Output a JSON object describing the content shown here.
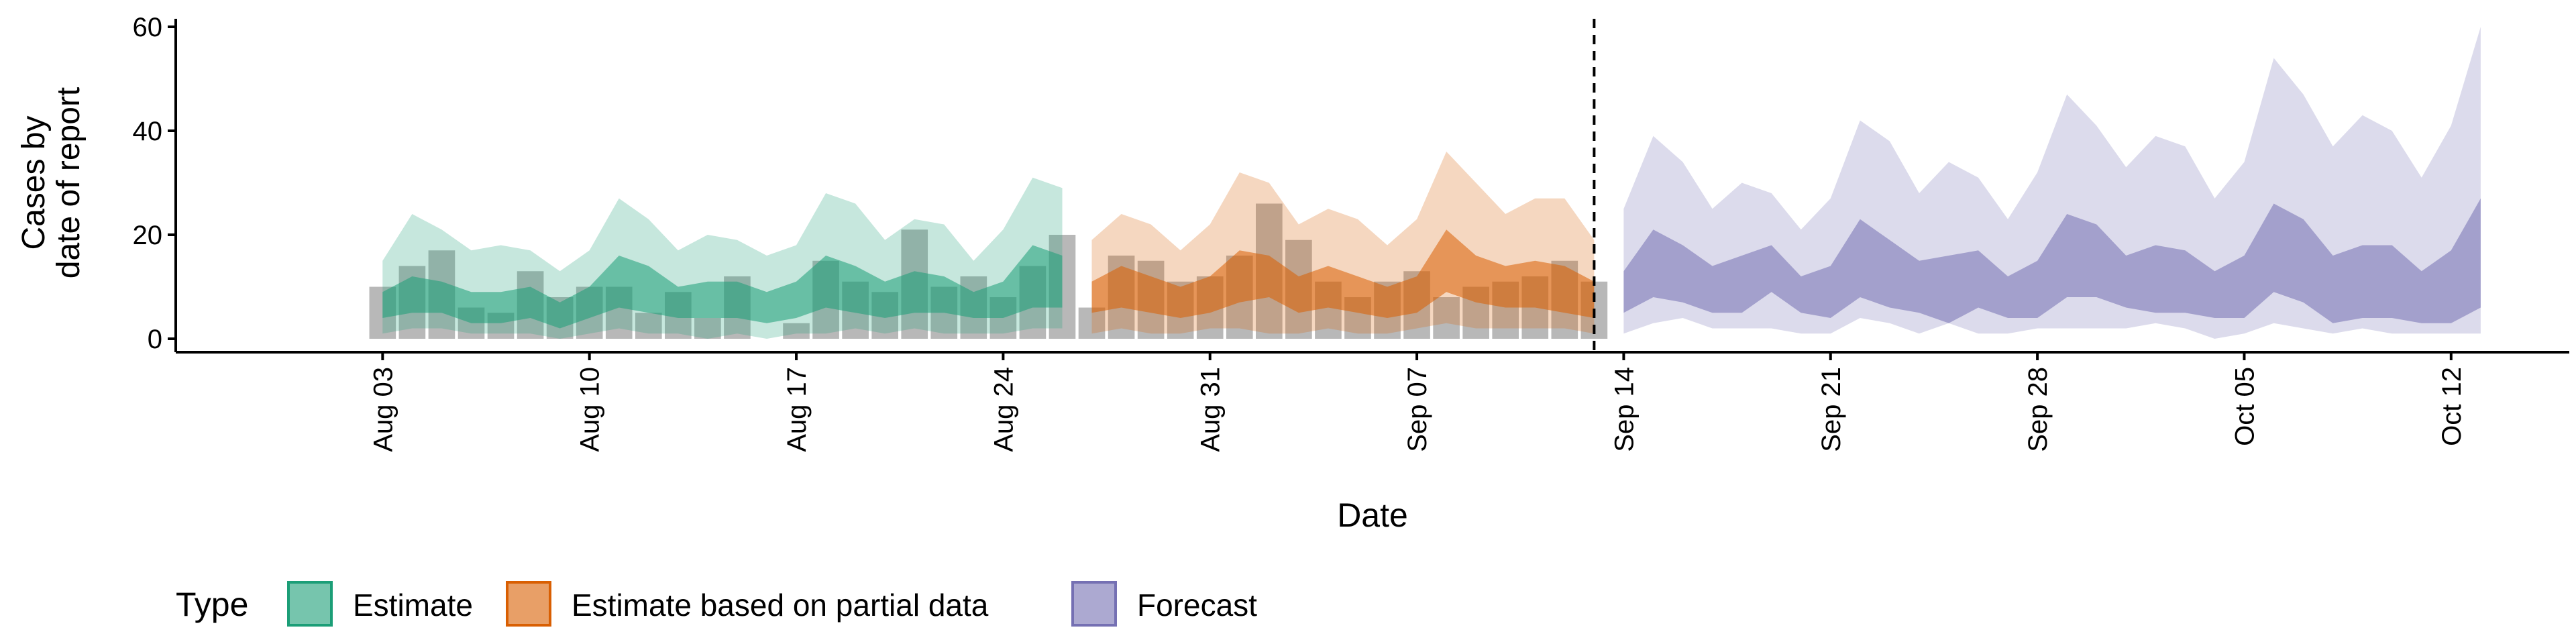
{
  "chart_data": {
    "type": "area",
    "xlabel": "Date",
    "ylabel_lines": [
      "Cases by",
      "date of report"
    ],
    "ylim": [
      0,
      60
    ],
    "yticks": [
      0,
      20,
      40,
      60
    ],
    "x_range": [
      "2020-07-27",
      "2020-10-16"
    ],
    "x_ticks": [
      {
        "date": "2020-08-03",
        "label": "Aug 03"
      },
      {
        "date": "2020-08-10",
        "label": "Aug 10"
      },
      {
        "date": "2020-08-17",
        "label": "Aug 17"
      },
      {
        "date": "2020-08-24",
        "label": "Aug 24"
      },
      {
        "date": "2020-08-31",
        "label": "Aug 31"
      },
      {
        "date": "2020-09-07",
        "label": "Sep 07"
      },
      {
        "date": "2020-09-14",
        "label": "Sep 14"
      },
      {
        "date": "2020-09-21",
        "label": "Sep 21"
      },
      {
        "date": "2020-09-28",
        "label": "Sep 28"
      },
      {
        "date": "2020-10-05",
        "label": "Oct 05"
      },
      {
        "date": "2020-10-12",
        "label": "Oct 12"
      }
    ],
    "vline_date": "2020-09-13",
    "bar_color": "#a6a6a6",
    "observed_cases": {
      "dates": [
        "2020-08-03",
        "2020-08-04",
        "2020-08-05",
        "2020-08-06",
        "2020-08-07",
        "2020-08-08",
        "2020-08-09",
        "2020-08-10",
        "2020-08-11",
        "2020-08-12",
        "2020-08-13",
        "2020-08-14",
        "2020-08-15",
        "2020-08-16",
        "2020-08-17",
        "2020-08-18",
        "2020-08-19",
        "2020-08-20",
        "2020-08-21",
        "2020-08-22",
        "2020-08-23",
        "2020-08-24",
        "2020-08-25",
        "2020-08-26",
        "2020-08-27",
        "2020-08-28",
        "2020-08-29",
        "2020-08-30",
        "2020-08-31",
        "2020-09-01",
        "2020-09-02",
        "2020-09-03",
        "2020-09-04",
        "2020-09-05",
        "2020-09-06",
        "2020-09-07",
        "2020-09-08",
        "2020-09-09",
        "2020-09-10",
        "2020-09-11",
        "2020-09-12",
        "2020-09-13"
      ],
      "values": [
        10,
        14,
        17,
        6,
        5,
        13,
        8,
        10,
        10,
        5,
        9,
        4,
        12,
        0,
        3,
        15,
        11,
        9,
        21,
        10,
        12,
        8,
        14,
        20,
        6,
        16,
        15,
        11,
        12,
        16,
        26,
        19,
        11,
        8,
        11,
        13,
        8,
        10,
        11,
        12,
        15,
        11
      ]
    },
    "series": [
      {
        "name": "Estimate",
        "color": "#1b9e77",
        "dates": [
          "2020-08-03",
          "2020-08-04",
          "2020-08-05",
          "2020-08-06",
          "2020-08-07",
          "2020-08-08",
          "2020-08-09",
          "2020-08-10",
          "2020-08-11",
          "2020-08-12",
          "2020-08-13",
          "2020-08-14",
          "2020-08-15",
          "2020-08-16",
          "2020-08-17",
          "2020-08-18",
          "2020-08-19",
          "2020-08-20",
          "2020-08-21",
          "2020-08-22",
          "2020-08-23",
          "2020-08-24",
          "2020-08-25",
          "2020-08-26"
        ],
        "lower90": [
          1,
          2,
          2,
          1,
          1,
          1,
          0,
          1,
          2,
          1,
          1,
          0,
          1,
          0,
          1,
          1,
          2,
          1,
          2,
          1,
          1,
          1,
          2,
          2
        ],
        "upper90": [
          15,
          24,
          21,
          17,
          18,
          17,
          13,
          17,
          27,
          23,
          17,
          20,
          19,
          16,
          18,
          28,
          26,
          19,
          23,
          22,
          15,
          21,
          31,
          29
        ],
        "lower50": [
          4,
          5,
          5,
          3,
          3,
          4,
          2,
          4,
          6,
          5,
          4,
          4,
          4,
          3,
          4,
          6,
          5,
          4,
          5,
          5,
          4,
          4,
          6,
          6
        ],
        "upper50": [
          9,
          12,
          11,
          9,
          9,
          10,
          7,
          10,
          16,
          14,
          10,
          11,
          11,
          9,
          11,
          16,
          14,
          11,
          13,
          12,
          9,
          11,
          18,
          16
        ]
      },
      {
        "name": "Estimate based on partial data",
        "color": "#d95f02",
        "dates": [
          "2020-08-27",
          "2020-08-28",
          "2020-08-29",
          "2020-08-30",
          "2020-08-31",
          "2020-09-01",
          "2020-09-02",
          "2020-09-03",
          "2020-09-04",
          "2020-09-05",
          "2020-09-06",
          "2020-09-07",
          "2020-09-08",
          "2020-09-09",
          "2020-09-10",
          "2020-09-11",
          "2020-09-12",
          "2020-09-13"
        ],
        "lower90": [
          1,
          2,
          1,
          1,
          2,
          2,
          1,
          1,
          2,
          1,
          1,
          2,
          3,
          2,
          2,
          2,
          2,
          1
        ],
        "upper90": [
          19,
          24,
          22,
          17,
          22,
          32,
          30,
          22,
          25,
          23,
          18,
          23,
          36,
          30,
          24,
          27,
          27,
          19
        ],
        "lower50": [
          5,
          6,
          5,
          4,
          5,
          7,
          8,
          5,
          6,
          5,
          4,
          5,
          9,
          7,
          6,
          6,
          5,
          4
        ],
        "upper50": [
          11,
          14,
          12,
          10,
          12,
          17,
          16,
          12,
          14,
          12,
          10,
          12,
          21,
          16,
          14,
          15,
          14,
          11
        ]
      },
      {
        "name": "Forecast",
        "color": "#7570b3",
        "dates": [
          "2020-09-14",
          "2020-09-15",
          "2020-09-16",
          "2020-09-17",
          "2020-09-18",
          "2020-09-19",
          "2020-09-20",
          "2020-09-21",
          "2020-09-22",
          "2020-09-23",
          "2020-09-24",
          "2020-09-25",
          "2020-09-26",
          "2020-09-27",
          "2020-09-28",
          "2020-09-29",
          "2020-09-30",
          "2020-10-01",
          "2020-10-02",
          "2020-10-03",
          "2020-10-04",
          "2020-10-05",
          "2020-10-06",
          "2020-10-07",
          "2020-10-08",
          "2020-10-09",
          "2020-10-10",
          "2020-10-11",
          "2020-10-12",
          "2020-10-13"
        ],
        "lower90": [
          1,
          3,
          4,
          2,
          2,
          2,
          1,
          1,
          4,
          3,
          1,
          3,
          1,
          1,
          2,
          2,
          2,
          2,
          3,
          2,
          0,
          1,
          3,
          2,
          1,
          2,
          1,
          1,
          1,
          1
        ],
        "upper90": [
          25,
          39,
          34,
          25,
          30,
          28,
          21,
          27,
          42,
          38,
          28,
          34,
          31,
          23,
          32,
          47,
          41,
          33,
          39,
          37,
          27,
          34,
          54,
          47,
          37,
          43,
          40,
          31,
          41,
          60
        ],
        "lower50": [
          5,
          8,
          7,
          5,
          5,
          9,
          5,
          4,
          8,
          6,
          5,
          3,
          6,
          4,
          4,
          8,
          8,
          6,
          5,
          5,
          4,
          4,
          9,
          7,
          3,
          4,
          4,
          3,
          3,
          6
        ],
        "upper50": [
          13,
          21,
          18,
          14,
          16,
          18,
          12,
          14,
          23,
          19,
          15,
          16,
          17,
          12,
          15,
          24,
          22,
          16,
          18,
          17,
          13,
          16,
          26,
          23,
          16,
          18,
          18,
          13,
          17,
          27
        ]
      }
    ],
    "legend": {
      "title": "Type",
      "position": "bottom-left"
    }
  }
}
